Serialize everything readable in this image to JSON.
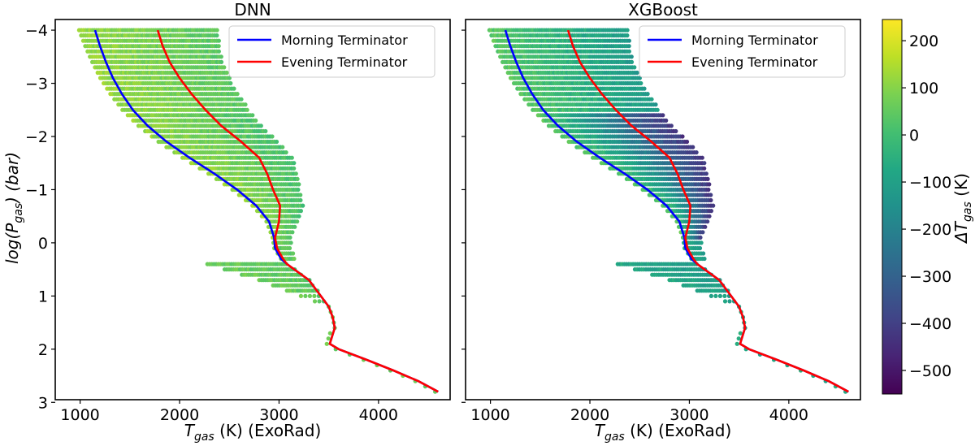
{
  "chart_data": {
    "type": "scatter",
    "panels": [
      {
        "id": "dnn",
        "title": "DNN",
        "xlabel_main": "T",
        "xlabel_sub": "gas",
        "xlabel_rest": " (K) (ExoRad)",
        "ylabel_main": "log(P",
        "ylabel_sub": "gas",
        "ylabel_rest": ") (bar)",
        "xlim": [
          750,
          4720
        ],
        "ylim": [
          2.95,
          -4.2
        ],
        "xticks": [
          1000,
          2000,
          3000,
          4000
        ],
        "yticks": [
          -4,
          -3,
          -2,
          -1,
          0,
          1,
          2,
          3
        ],
        "bias": 40,
        "coolBoost": 80
      },
      {
        "id": "xgb",
        "title": "XGBoost",
        "xlabel_main": "T",
        "xlabel_sub": "gas",
        "xlabel_rest": " (K) (ExoRad)",
        "xlim": [
          750,
          4720
        ],
        "ylim": [
          2.95,
          -4.2
        ],
        "xticks": [
          1000,
          2000,
          3000,
          4000
        ],
        "yticks": [
          -4,
          -3,
          -2,
          -1,
          0,
          1,
          2,
          3
        ],
        "bias": -120,
        "coolBoost": 160
      }
    ],
    "series": [
      {
        "name": "Morning Terminator",
        "color": "#0000ff",
        "x": [
          1150,
          1200,
          1260,
          1330,
          1420,
          1530,
          1680,
          1870,
          2100,
          2350,
          2580,
          2770,
          2900,
          2950,
          2960,
          3020,
          3080,
          3300,
          3420,
          3500,
          3540,
          3560,
          3510,
          3600,
          3880,
          4150,
          4400,
          4600
        ],
        "y": [
          -4,
          -3.7,
          -3.4,
          -3.1,
          -2.8,
          -2.5,
          -2.2,
          -1.9,
          -1.6,
          -1.3,
          -1.0,
          -0.7,
          -0.4,
          -0.1,
          0.1,
          0.3,
          0.4,
          0.7,
          1.0,
          1.2,
          1.4,
          1.6,
          1.9,
          2.0,
          2.2,
          2.4,
          2.6,
          2.8
        ]
      },
      {
        "name": "Evening Terminator",
        "color": "#ff0000",
        "x": [
          1780,
          1830,
          1900,
          2000,
          2120,
          2260,
          2420,
          2620,
          2800,
          2880,
          2940,
          3010,
          3000,
          2960,
          2980,
          3040,
          3080,
          3300,
          3420,
          3500,
          3540,
          3560,
          3510,
          3600,
          3880,
          4150,
          4400,
          4600
        ],
        "y": [
          -4,
          -3.7,
          -3.4,
          -3.1,
          -2.8,
          -2.5,
          -2.2,
          -1.9,
          -1.6,
          -1.3,
          -1.0,
          -0.7,
          -0.4,
          -0.1,
          0.1,
          0.3,
          0.4,
          0.7,
          1.0,
          1.2,
          1.4,
          1.6,
          1.9,
          2.0,
          2.2,
          2.4,
          2.6,
          2.8
        ]
      }
    ],
    "colorbar": {
      "label_main": "ΔT",
      "label_sub": "gas",
      "label_rest": " (K)",
      "range": [
        -550,
        245
      ],
      "ticks": [
        200,
        100,
        0,
        -100,
        -200,
        -300,
        -400,
        -500
      ],
      "colormap": "viridis"
    },
    "legend_position": "top-right"
  }
}
